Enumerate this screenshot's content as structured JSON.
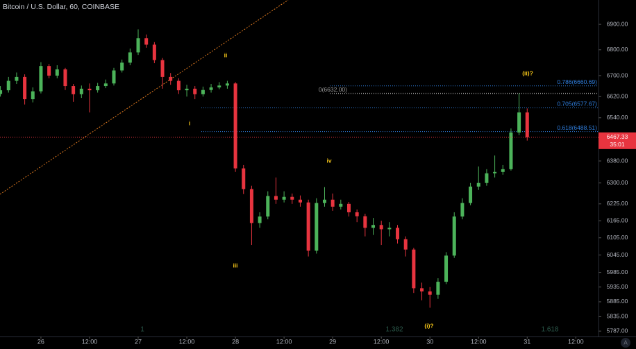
{
  "chart_data": {
    "type": "candlestick",
    "title": "Bitcoin / U.S. Dollar, 60, COINBASE",
    "log_scale": true,
    "up_color": "#4cb35a",
    "down_color": "#e8343f",
    "x": [
      -10,
      -8,
      -6,
      -4,
      -2,
      0,
      2,
      4,
      6,
      8,
      10,
      12,
      14,
      16,
      18,
      20,
      22,
      24,
      26,
      28,
      30,
      32,
      34,
      36,
      38,
      40,
      42,
      44,
      46,
      48,
      50,
      52,
      54,
      56,
      58,
      60,
      62,
      64,
      66,
      68,
      70,
      72,
      74,
      76,
      78,
      80,
      82,
      84,
      86,
      88,
      90,
      92,
      94,
      96,
      98,
      100,
      102,
      104,
      106,
      108,
      110,
      112,
      114,
      116,
      118,
      120
    ],
    "open": [
      6630,
      6644,
      6680,
      6695,
      6610,
      6640,
      6737,
      6700,
      6724,
      6660,
      6629,
      6650,
      6644,
      6660,
      6670,
      6720,
      6750,
      6790,
      6845,
      6820,
      6760,
      6695,
      6680,
      6644,
      6650,
      6629,
      6645,
      6655,
      6662,
      6670,
      6353,
      6278,
      6157,
      6180,
      6253,
      6240,
      6250,
      6240,
      6230,
      6060,
      6228,
      6240,
      6215,
      6225,
      6195,
      6181,
      6140,
      6150,
      6135,
      6140,
      6100,
      6064,
      5931,
      5920,
      5909,
      5953,
      6043,
      6180,
      6228,
      6287,
      6300,
      6335,
      6340,
      6350,
      6485,
      6560
    ],
    "high": [
      6660,
      6695,
      6712,
      6705,
      6655,
      6752,
      6745,
      6740,
      6730,
      6668,
      6662,
      6670,
      6672,
      6685,
      6730,
      6762,
      6805,
      6880,
      6860,
      6830,
      6768,
      6710,
      6690,
      6665,
      6660,
      6658,
      6668,
      6675,
      6680,
      6675,
      6365,
      6290,
      6195,
      6270,
      6320,
      6270,
      6262,
      6255,
      6240,
      6245,
      6285,
      6262,
      6240,
      6232,
      6205,
      6190,
      6175,
      6165,
      6160,
      6150,
      6110,
      6070,
      5950,
      5935,
      5965,
      6055,
      6195,
      6245,
      6300,
      6360,
      6350,
      6400,
      6365,
      6500,
      6632,
      6575
    ],
    "low": [
      6620,
      6635,
      6668,
      6590,
      6598,
      6632,
      6690,
      6690,
      6645,
      6600,
      6615,
      6560,
      6635,
      6652,
      6662,
      6712,
      6740,
      6780,
      6808,
      6748,
      6650,
      6665,
      6630,
      6620,
      6610,
      6620,
      6635,
      6648,
      6650,
      6340,
      6260,
      6080,
      6140,
      6170,
      6225,
      6230,
      6225,
      6215,
      6040,
      6050,
      6215,
      6200,
      6205,
      6180,
      6160,
      6110,
      6115,
      6080,
      6110,
      6085,
      6040,
      5915,
      5890,
      5865,
      5895,
      5945,
      6035,
      6170,
      6220,
      6275,
      6290,
      6320,
      6330,
      6345,
      6475,
      6455
    ],
    "close": [
      6644,
      6680,
      6695,
      6610,
      6640,
      6737,
      6700,
      6724,
      6660,
      6629,
      6650,
      6644,
      6660,
      6670,
      6720,
      6750,
      6790,
      6845,
      6820,
      6760,
      6695,
      6680,
      6644,
      6650,
      6629,
      6645,
      6655,
      6662,
      6670,
      6353,
      6278,
      6157,
      6180,
      6253,
      6240,
      6250,
      6240,
      6230,
      6060,
      6228,
      6240,
      6215,
      6225,
      6195,
      6181,
      6140,
      6150,
      6135,
      6140,
      6100,
      6064,
      5931,
      5920,
      5909,
      5953,
      6043,
      6180,
      6228,
      6287,
      6300,
      6335,
      6340,
      6350,
      6485,
      6560,
      6467.33
    ],
    "xlim": [
      -10.1,
      137.6
    ],
    "xticks": [
      {
        "value": 0,
        "label": "26"
      },
      {
        "value": 12,
        "label": "12:00"
      },
      {
        "value": 24,
        "label": "27"
      },
      {
        "value": 36,
        "label": "12:00"
      },
      {
        "value": 48,
        "label": "28"
      },
      {
        "value": 60,
        "label": "12:00"
      },
      {
        "value": 72,
        "label": "29"
      },
      {
        "value": 84,
        "label": "12:00"
      },
      {
        "value": 96,
        "label": "30"
      },
      {
        "value": 108,
        "label": "12:00"
      },
      {
        "value": 120,
        "label": "31"
      },
      {
        "value": 132,
        "label": "12:00"
      }
    ],
    "ylim": [
      5769,
      6997
    ],
    "yticks": [
      {
        "value": 6900,
        "label": "6900.00"
      },
      {
        "value": 6800,
        "label": "6800.00"
      },
      {
        "value": 6700,
        "label": "6700.00"
      },
      {
        "value": 6620,
        "label": "6620.00"
      },
      {
        "value": 6540,
        "label": "6540.00"
      },
      {
        "value": 6380,
        "label": "6380.00"
      },
      {
        "value": 6300,
        "label": "6300.00"
      },
      {
        "value": 6225,
        "label": "6225.00"
      },
      {
        "value": 6165,
        "label": "6165.00"
      },
      {
        "value": 6105,
        "label": "6105.00"
      },
      {
        "value": 6045,
        "label": "6045.00"
      },
      {
        "value": 5985,
        "label": "5985.00"
      },
      {
        "value": 5935,
        "label": "5935.00"
      },
      {
        "value": 5885,
        "label": "5885.00"
      },
      {
        "value": 5835,
        "label": "5835.00"
      },
      {
        "value": 5787,
        "label": "5787.00"
      }
    ],
    "last_price": 6467.33,
    "countdown": "35:01",
    "fib_levels": [
      {
        "label": "0.786(6660.69)",
        "value": 6660.69,
        "color": "#2f7fe0"
      },
      {
        "label": "0(6632.00)",
        "value": 6632.0,
        "color": "#9a9a9a"
      },
      {
        "label": "0.705(6577.67)",
        "value": 6577.67,
        "color": "#2f7fe0"
      },
      {
        "label": "0.618(6488.51)",
        "value": 6488.51,
        "color": "#2f7fe0"
      }
    ],
    "wave_labels": [
      "ii",
      "i",
      "iii",
      "iv",
      "(i)?",
      "(ii)?"
    ],
    "extension_labels": [
      "1",
      "1.382",
      "1.618"
    ],
    "auto_button": "A"
  }
}
